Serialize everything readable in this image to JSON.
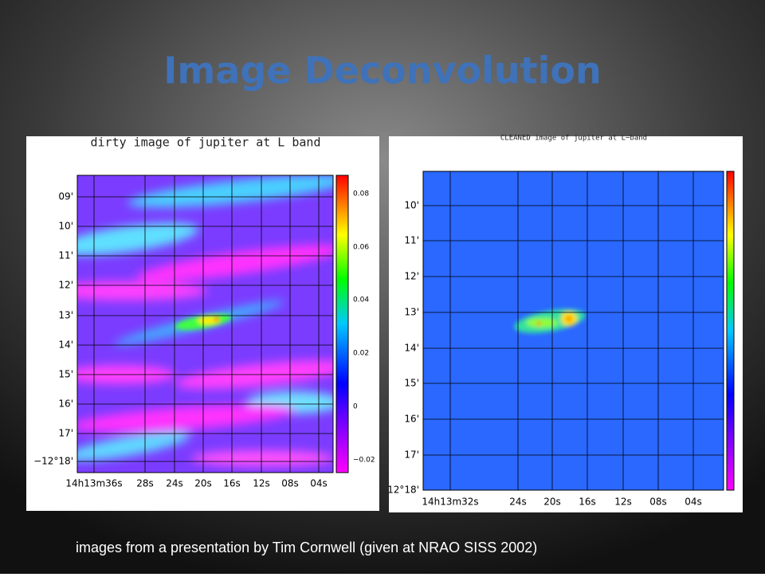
{
  "title": "Image Deconvolution",
  "caption": "images from a presentation by Tim Cornwell (given at NRAO SISS 2002)",
  "panels": [
    {
      "title": "dirty image of jupiter at L band",
      "y_labels": [
        "09'",
        "10'",
        "11'",
        "12'",
        "13'",
        "14'",
        "15'",
        "16'",
        "17'",
        "−12°18'"
      ],
      "x_labels": [
        "14h13m36s",
        "28s",
        "24s",
        "20s",
        "16s",
        "12s",
        "08s",
        "04s"
      ],
      "colorbar_labels": [
        "0.08",
        "0.06",
        "0.04",
        "0.02",
        "0",
        "−0.02"
      ]
    },
    {
      "title": "CLEANED image of jupiter at L−band",
      "y_labels": [
        "10'",
        "11'",
        "12'",
        "13'",
        "14'",
        "15'",
        "16'",
        "17'",
        "12°18'"
      ],
      "x_labels": [
        "14h13m32s",
        "24s",
        "20s",
        "16s",
        "12s",
        "08s",
        "04s"
      ]
    }
  ]
}
